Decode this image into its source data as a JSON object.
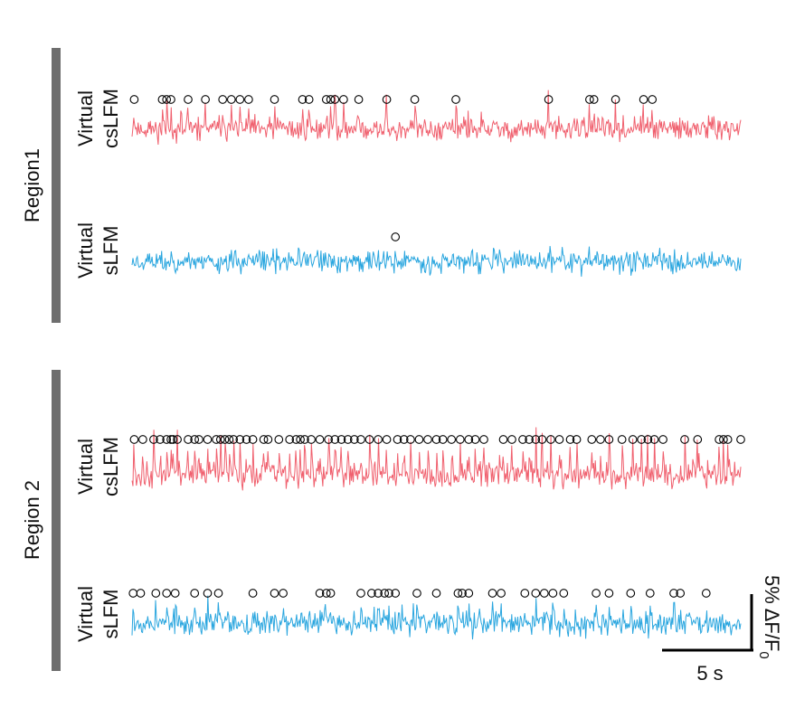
{
  "chart_data": {
    "type": "line",
    "title": "",
    "style": {
      "csLFM_color": "#f0606e",
      "sLFM_color": "#2aa6df",
      "bar_color": "#6e6e6e",
      "marker_color": "#000000"
    },
    "regions": [
      {
        "label": "Region1",
        "traces": [
          {
            "label_line1": "Virtual",
            "label_line2": "csLFM",
            "method": "csLFM",
            "seed": 11,
            "noise_amp": 0.9,
            "spike_max": 4.5,
            "spike_times": [
              0.1,
              1.4,
              1.6,
              1.8,
              2.6,
              3.4,
              4.2,
              4.6,
              5.0,
              5.4,
              6.6,
              7.9,
              8.2,
              9.0,
              9.2,
              9.4,
              9.8,
              10.5,
              11.8,
              13.1,
              15.0,
              19.3,
              21.2,
              21.4,
              22.4,
              23.7,
              24.1
            ]
          },
          {
            "label_line1": "Virtual",
            "label_line2": "sLFM",
            "method": "sLFM",
            "seed": 23,
            "noise_amp": 0.9,
            "spike_max": 1.4,
            "spike_times": [
              12.2
            ]
          }
        ]
      },
      {
        "label": "Region 2",
        "traces": [
          {
            "label_line1": "Virtual",
            "label_line2": "csLFM",
            "method": "csLFM",
            "seed": 37,
            "noise_amp": 1.1,
            "spike_max": 6.5,
            "spike_times": [
              0.1,
              0.5,
              1.0,
              1.3,
              1.6,
              1.8,
              1.9,
              2.1,
              2.6,
              2.9,
              3.1,
              3.5,
              3.9,
              4.1,
              4.3,
              4.5,
              4.7,
              5.0,
              5.3,
              5.6,
              6.1,
              6.3,
              6.8,
              7.3,
              7.6,
              7.8,
              8.0,
              8.3,
              8.7,
              9.1,
              9.4,
              9.7,
              10.0,
              10.3,
              10.6,
              11.0,
              11.4,
              11.8,
              12.3,
              12.6,
              12.9,
              13.3,
              13.7,
              14.1,
              14.4,
              14.8,
              15.2,
              15.6,
              15.9,
              16.3,
              17.2,
              17.6,
              18.1,
              18.4,
              18.7,
              19.0,
              19.4,
              19.8,
              20.3,
              20.6,
              21.3,
              21.7,
              22.1,
              22.7,
              23.2,
              23.6,
              23.9,
              24.2,
              24.6,
              25.6,
              26.2,
              27.2,
              27.4,
              27.6,
              28.2
            ]
          },
          {
            "label_line1": "Virtual",
            "label_line2": "sLFM",
            "method": "sLFM",
            "seed": 53,
            "noise_amp": 1.0,
            "spike_max": 3.2,
            "spike_times": [
              0.05,
              0.4,
              1.1,
              1.6,
              2.0,
              2.9,
              3.5,
              4.0,
              5.6,
              6.6,
              7.0,
              8.7,
              9.0,
              9.2,
              10.6,
              11.1,
              11.4,
              11.7,
              11.9,
              12.2,
              13.2,
              14.1,
              15.1,
              15.3,
              15.6,
              16.7,
              17.1,
              18.2,
              18.7,
              19.1,
              19.5,
              20.0,
              21.5,
              22.1,
              23.1,
              24.0,
              25.1,
              25.4,
              26.6
            ]
          }
        ]
      }
    ],
    "scale_bar": {
      "time_label": "5 s",
      "time_value_s": 5,
      "amplitude_label_main": "5%  ΔF/F",
      "amplitude_label_sub": "0",
      "amplitude_value_percent": 5
    },
    "time_range_s": [
      0,
      28.2
    ]
  }
}
